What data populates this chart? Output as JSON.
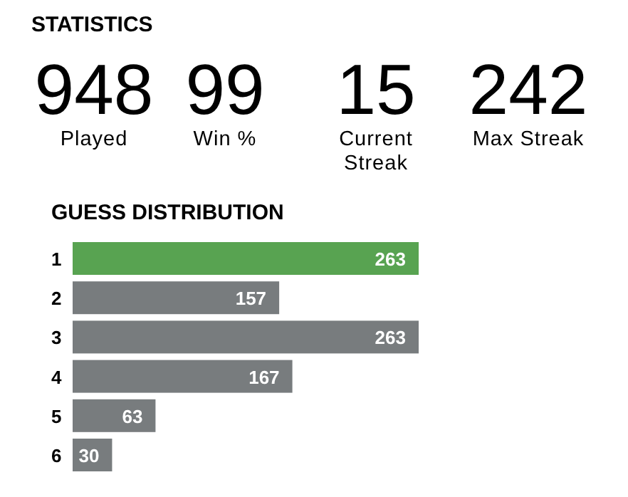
{
  "chart_data": [
    {
      "type": "other",
      "title": "STATISTICS",
      "categories": [
        "Played",
        "Win %",
        "Current Streak",
        "Max Streak"
      ],
      "values": [
        948,
        99,
        15,
        242
      ],
      "data_labels": true
    },
    {
      "type": "bar",
      "title": "GUESS DISTRIBUTION",
      "orientation": "horizontal",
      "categories": [
        "1",
        "2",
        "3",
        "4",
        "5",
        "6"
      ],
      "values": [
        263,
        157,
        263,
        167,
        63,
        30
      ],
      "colors": [
        "#58a351",
        "#787c7e",
        "#787c7e",
        "#787c7e",
        "#787c7e",
        "#787c7e"
      ],
      "data_labels": true
    }
  ]
}
